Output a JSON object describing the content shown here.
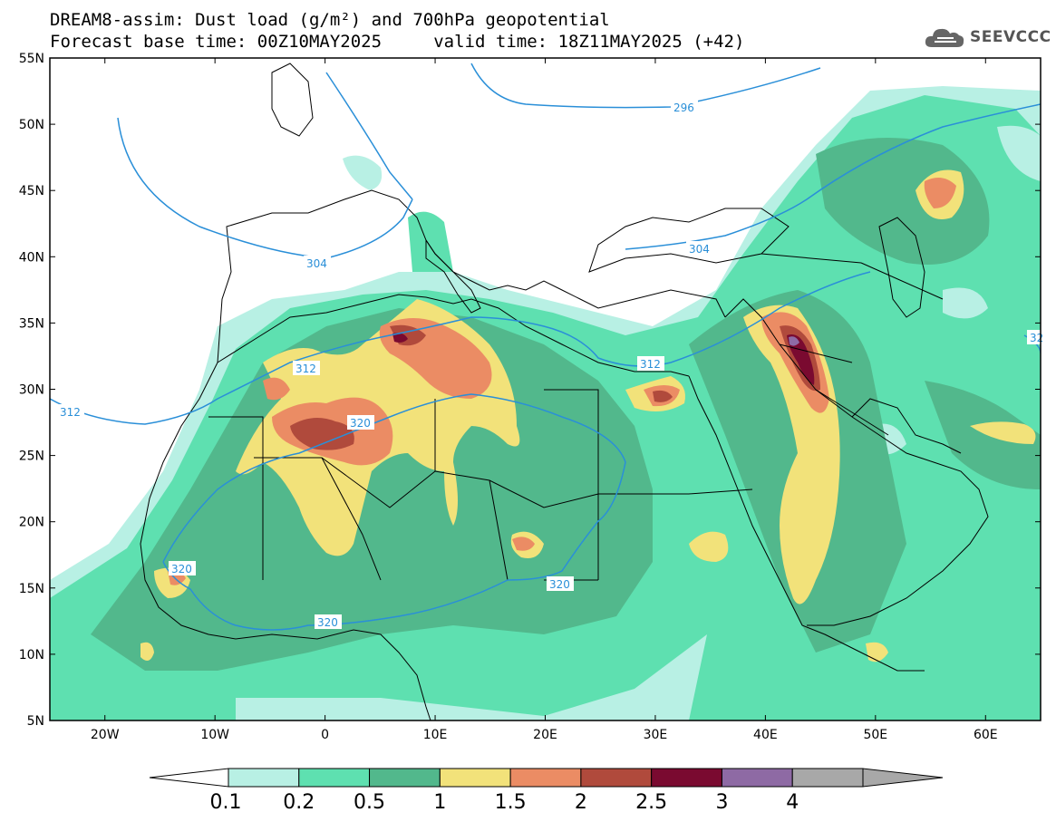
{
  "title": {
    "line1": "DREAM8-assim: Dust load (g/m²) and 700hPa geopotential",
    "line2": "Forecast base time: 00Z10MAY2025     valid time: 18Z11MAY2025 (+42)"
  },
  "logo": {
    "text": "SEEVCCC",
    "icon": "cloud-logo-icon"
  },
  "map": {
    "lon_range": [
      -25,
      65
    ],
    "lat_range": [
      5,
      55
    ],
    "lat_ticks": [
      "55N",
      "50N",
      "45N",
      "40N",
      "35N",
      "30N",
      "25N",
      "20N",
      "15N",
      "10N",
      "5N"
    ],
    "lon_ticks": [
      "20W",
      "10W",
      "0",
      "10E",
      "20E",
      "30E",
      "40E",
      "50E",
      "60E"
    ],
    "contour_labels": [
      "296",
      "304",
      "312",
      "312",
      "312",
      "320",
      "320",
      "320",
      "320",
      "32"
    ]
  },
  "colorbar": {
    "levels": [
      "0.1",
      "0.2",
      "0.5",
      "1",
      "1.5",
      "2",
      "2.5",
      "3",
      "4"
    ],
    "colors": [
      "#b8f0e4",
      "#5ee0b0",
      "#52b88c",
      "#f2e27a",
      "#eb8c64",
      "#b04a3c",
      "#7a0a30",
      "#8e6aa4",
      "#a8a8a8"
    ]
  },
  "colors": {
    "contour": "#2a8fd8",
    "border": "#000000"
  }
}
